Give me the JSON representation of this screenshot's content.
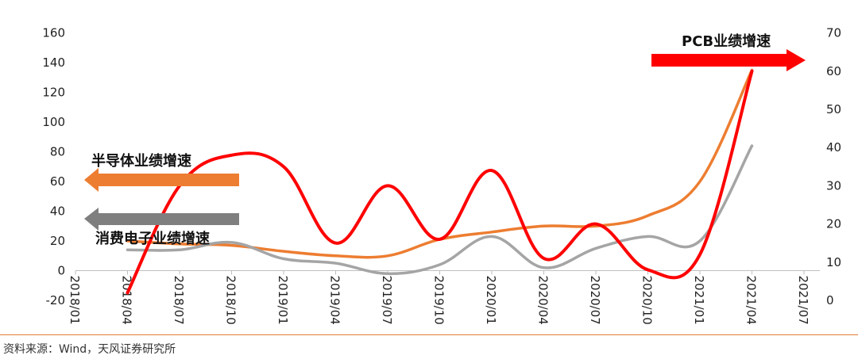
{
  "chart_data": {
    "type": "line",
    "x": [
      "2018/01",
      "2018/04",
      "2018/07",
      "2018/10",
      "2019/01",
      "2019/04",
      "2019/07",
      "2019/10",
      "2020/01",
      "2020/04",
      "2020/07",
      "2020/10",
      "2021/01",
      "2021/04",
      "2021/07"
    ],
    "y_left": {
      "min": -20,
      "max": 160,
      "step": 20,
      "ticks": [
        -20,
        0,
        20,
        40,
        60,
        80,
        100,
        120,
        140,
        160
      ]
    },
    "y_right": {
      "min": 0,
      "max": 70,
      "step": 10,
      "ticks": [
        0,
        10,
        20,
        30,
        40,
        50,
        60,
        70
      ]
    },
    "series": [
      {
        "name": "半导体业绩增速",
        "axis": "left",
        "color": "#ed7d31",
        "points": [
          [
            "2018/04",
            20
          ],
          [
            "2018/07",
            18
          ],
          [
            "2018/10",
            17
          ],
          [
            "2019/01",
            13
          ],
          [
            "2019/04",
            10
          ],
          [
            "2019/07",
            10
          ],
          [
            "2019/10",
            21
          ],
          [
            "2020/01",
            26
          ],
          [
            "2020/04",
            30
          ],
          [
            "2020/07",
            30
          ],
          [
            "2020/10",
            37
          ],
          [
            "2021/01",
            60
          ],
          [
            "2021/04",
            135
          ]
        ]
      },
      {
        "name": "消费电子业绩增速",
        "axis": "left",
        "color": "#a5a5a5",
        "points": [
          [
            "2018/04",
            14
          ],
          [
            "2018/07",
            14
          ],
          [
            "2018/10",
            19
          ],
          [
            "2019/01",
            8
          ],
          [
            "2019/04",
            5
          ],
          [
            "2019/07",
            -2
          ],
          [
            "2019/10",
            4
          ],
          [
            "2020/01",
            23
          ],
          [
            "2020/04",
            2
          ],
          [
            "2020/07",
            15
          ],
          [
            "2020/10",
            23
          ],
          [
            "2021/01",
            20
          ],
          [
            "2021/04",
            84
          ]
        ]
      },
      {
        "name": "PCB业绩增速",
        "axis": "right",
        "color": "#ff0000",
        "points": [
          [
            "2018/04",
            2
          ],
          [
            "2018/07",
            30
          ],
          [
            "2018/10",
            38
          ],
          [
            "2019/01",
            35
          ],
          [
            "2019/04",
            15
          ],
          [
            "2019/07",
            30
          ],
          [
            "2019/10",
            16
          ],
          [
            "2020/01",
            34
          ],
          [
            "2020/04",
            11
          ],
          [
            "2020/07",
            20
          ],
          [
            "2020/10",
            8
          ],
          [
            "2021/01",
            12
          ],
          [
            "2021/04",
            60
          ]
        ]
      }
    ]
  },
  "annotations": {
    "pcb": {
      "label": "PCB业绩增速",
      "direction": "right",
      "color": "#ff0000"
    },
    "semi": {
      "label": "半导体业绩增速",
      "direction": "left",
      "color": "#ed7d31"
    },
    "consumer": {
      "label": "消费电子业绩增速",
      "direction": "left",
      "color": "#7f7f7f"
    }
  },
  "footer": {
    "source": "资料来源：Wind，天风证券研究所"
  }
}
